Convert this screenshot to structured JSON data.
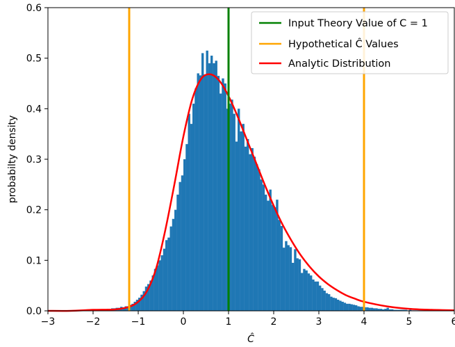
{
  "chart_data": {
    "type": "bar",
    "xlabel": "Ĉ",
    "ylabel": "probabilty density",
    "xlim": [
      -3,
      6
    ],
    "ylim": [
      0,
      0.6
    ],
    "xticks": [
      "−3",
      "−2",
      "−1",
      "0",
      "1",
      "2",
      "3",
      "4",
      "5",
      "6"
    ],
    "yticks": [
      "0.0",
      "0.1",
      "0.2",
      "0.3",
      "0.4",
      "0.5",
      "0.6"
    ],
    "grid": false,
    "legend_position": "top-right",
    "colors": {
      "histogram": "#1f77b4",
      "input_line": "#008000",
      "hypothetical_lines": "#ffa500",
      "analytic_curve": "#ff0000"
    },
    "legend": [
      {
        "key": "input",
        "label": "Input Theory Value of C = 1"
      },
      {
        "key": "hypothetical",
        "label": "Hypothetical Ĉ Values"
      },
      {
        "key": "analytic",
        "label": "Analytic Distribution"
      }
    ],
    "vertical_lines": [
      {
        "key": "input",
        "x": 1.0
      },
      {
        "key": "hypothetical",
        "x": -1.2
      },
      {
        "key": "hypothetical",
        "x": 4.0
      }
    ],
    "histogram": {
      "bin_start": -1.9,
      "bin_width": 0.05,
      "values": [
        0.002,
        0.002,
        0.003,
        0.003,
        0.004,
        0.004,
        0.005,
        0.005,
        0.006,
        0.006,
        0.008,
        0.007,
        0.009,
        0.009,
        0.012,
        0.014,
        0.018,
        0.022,
        0.026,
        0.032,
        0.039,
        0.048,
        0.053,
        0.06,
        0.07,
        0.083,
        0.09,
        0.1,
        0.11,
        0.123,
        0.14,
        0.145,
        0.167,
        0.182,
        0.2,
        0.23,
        0.255,
        0.268,
        0.3,
        0.33,
        0.39,
        0.37,
        0.41,
        0.44,
        0.47,
        0.466,
        0.51,
        0.468,
        0.515,
        0.49,
        0.505,
        0.49,
        0.495,
        0.465,
        0.43,
        0.46,
        0.45,
        0.4,
        0.41,
        0.418,
        0.39,
        0.335,
        0.4,
        0.355,
        0.37,
        0.325,
        0.34,
        0.31,
        0.322,
        0.305,
        0.29,
        0.28,
        0.26,
        0.25,
        0.23,
        0.218,
        0.24,
        0.21,
        0.205,
        0.22,
        0.18,
        0.168,
        0.125,
        0.138,
        0.13,
        0.126,
        0.095,
        0.122,
        0.104,
        0.102,
        0.075,
        0.083,
        0.08,
        0.074,
        0.07,
        0.062,
        0.058,
        0.058,
        0.05,
        0.045,
        0.04,
        0.035,
        0.033,
        0.028,
        0.026,
        0.025,
        0.022,
        0.02,
        0.018,
        0.016,
        0.014,
        0.014,
        0.013,
        0.012,
        0.011,
        0.009,
        0.008,
        0.008,
        0.007,
        0.007,
        0.006,
        0.006,
        0.005,
        0.005,
        0.004,
        0.004,
        0.003,
        0.004,
        0.006,
        0.003,
        0.003,
        0.002,
        0.002,
        0.002,
        0.002,
        0.002,
        0.002,
        0.001,
        0.002,
        0.001,
        0.001,
        0.001,
        0.001,
        0.001,
        0.001,
        0.001,
        0.001,
        0.001,
        0.0,
        0.001,
        0.001,
        0.0
      ]
    },
    "analytic_curve": {
      "x": [
        -3,
        -2.5,
        -2,
        -1.5,
        -1.2,
        -1.0,
        -0.8,
        -0.6,
        -0.4,
        -0.2,
        0.0,
        0.2,
        0.4,
        0.6,
        0.8,
        1.0,
        1.2,
        1.4,
        1.6,
        1.8,
        2.0,
        2.2,
        2.4,
        2.6,
        2.8,
        3.0,
        3.2,
        3.4,
        3.6,
        3.8,
        4.0,
        4.5,
        5.0,
        5.5,
        6.0
      ],
      "y": [
        0.0,
        0.0,
        0.002,
        0.003,
        0.008,
        0.018,
        0.04,
        0.085,
        0.16,
        0.25,
        0.345,
        0.42,
        0.46,
        0.468,
        0.455,
        0.425,
        0.385,
        0.34,
        0.295,
        0.25,
        0.208,
        0.17,
        0.138,
        0.11,
        0.087,
        0.068,
        0.053,
        0.041,
        0.031,
        0.024,
        0.018,
        0.009,
        0.004,
        0.002,
        0.001
      ]
    }
  }
}
